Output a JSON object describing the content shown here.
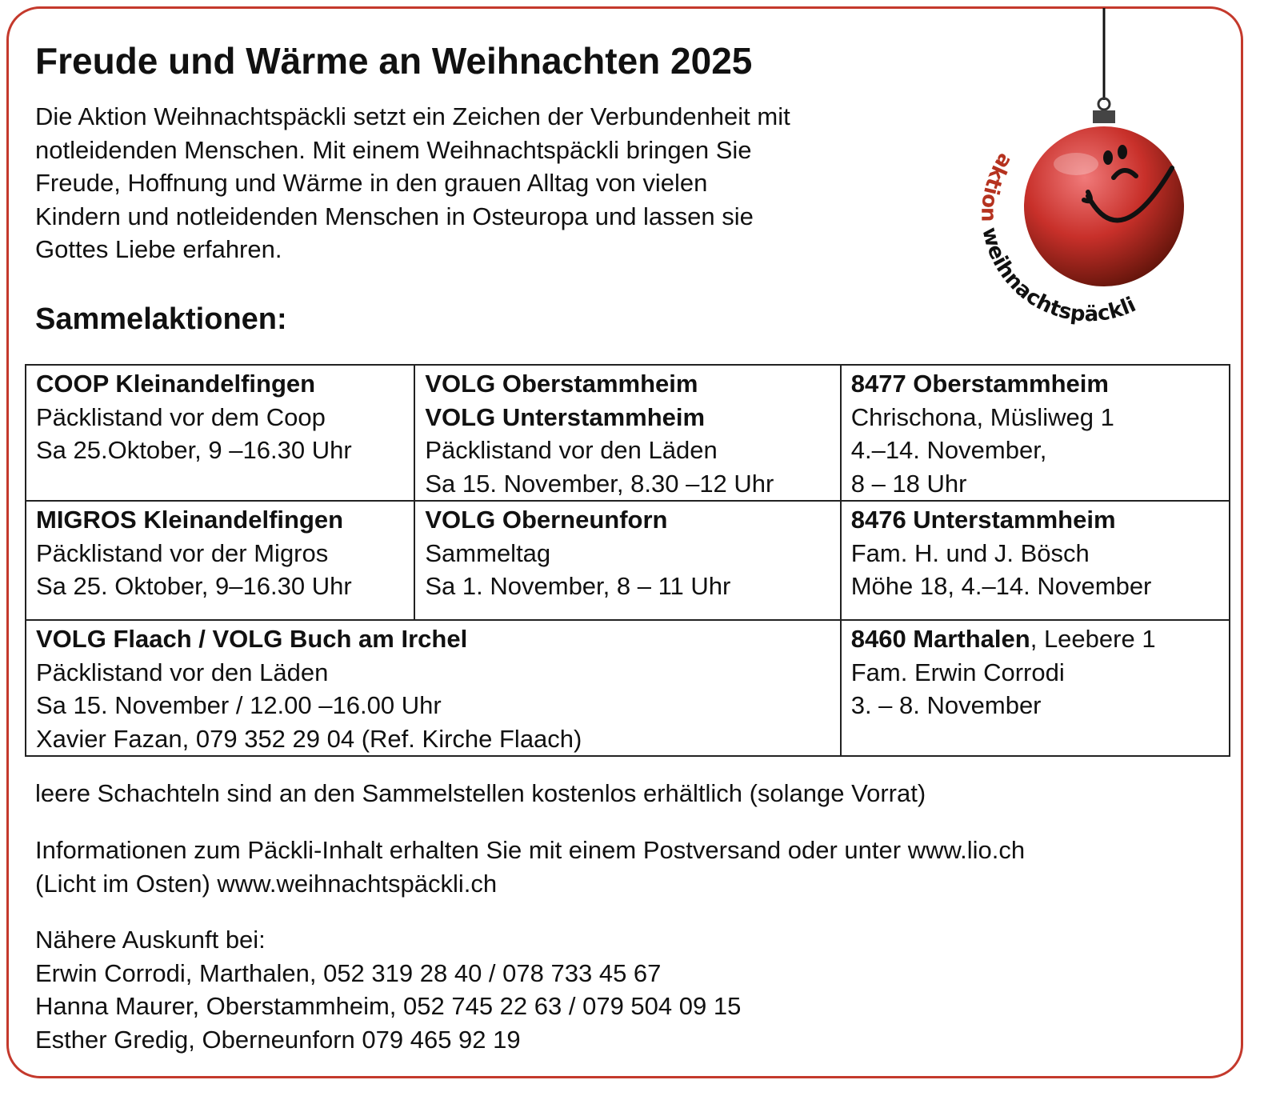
{
  "title": "Freude und Wärme an Weihnachten 2025",
  "intro": [
    "Die Aktion Weihnachtspäckli setzt ein Zeichen der Verbundenheit mit",
    "notleidenden Menschen. Mit einem Weihnachtspäckli bringen Sie",
    "Freude, Hoffnung und Wärme in den grauen Alltag von vielen",
    "Kindern und notleidenden Menschen in Osteuropa und lassen sie",
    "Gottes Liebe erfahren."
  ],
  "logo": {
    "text_red": "aktion",
    "text_black": "weihnachtspäckli",
    "ball_color": "#c0392b",
    "accent": "#c4392c"
  },
  "section_title": "Sammelaktionen:",
  "table": {
    "r1c1": {
      "bold": [
        "COOP Kleinandelfingen"
      ],
      "lines": [
        "Päcklistand vor dem Coop",
        "Sa 25.Oktober, 9 –16.30 Uhr"
      ]
    },
    "r1c2": {
      "bold": [
        "VOLG Oberstammheim",
        "VOLG Unterstammheim"
      ],
      "lines": [
        "Päcklistand vor den Läden",
        "Sa 15. November, 8.30 –12 Uhr"
      ]
    },
    "r1c3": {
      "bold": [
        "8477 Oberstammheim"
      ],
      "lines": [
        "Chrischona, Müsliweg 1",
        "4.–14. November,",
        "8 – 18 Uhr"
      ]
    },
    "r2c1": {
      "bold": [
        "MIGROS Kleinandelfingen"
      ],
      "lines": [
        "Päcklistand vor der Migros",
        "Sa 25. Oktober, 9–16.30 Uhr"
      ]
    },
    "r2c2": {
      "bold": [
        "VOLG Oberneunforn"
      ],
      "lines": [
        "Sammeltag",
        "Sa 1. November, 8 – 11 Uhr"
      ]
    },
    "r2c3": {
      "bold": [
        "8476 Unterstammheim"
      ],
      "lines": [
        "Fam. H. und J. Bösch",
        "Möhe 18, 4.–14. November"
      ]
    },
    "r3c1": {
      "bold": [
        "VOLG Flaach / VOLG Buch am Irchel"
      ],
      "lines": [
        "Päcklistand vor den Läden",
        "Sa 15. November / 12.00 –16.00 Uhr",
        "Xavier Fazan, 079 352 29 04 (Ref. Kirche Flaach)"
      ]
    },
    "r3c3": {
      "bold_inline": "8460 Marthalen",
      "inline_rest": ", Leebere 1",
      "lines": [
        "Fam. Erwin Corrodi",
        "3. – 8. November"
      ]
    }
  },
  "note_boxes": "leere Schachteln sind an den Sammelstellen kostenlos erhältlich (solange Vorrat)",
  "info": [
    "Informationen zum Päckli-Inhalt erhalten Sie mit einem Postversand oder unter www.lio.ch",
    "(Licht im Osten) www.weihnachtspäckli.ch"
  ],
  "contact": [
    "Nähere Auskunft bei:",
    "Erwin Corrodi, Marthalen, 052 319 28 40 / 078 733 45 67",
    "Hanna Maurer, Oberstammheim, 052 745 22 63 / 079 504 09 15",
    "Esther Gredig, Oberneunforn 079 465 92 19"
  ]
}
